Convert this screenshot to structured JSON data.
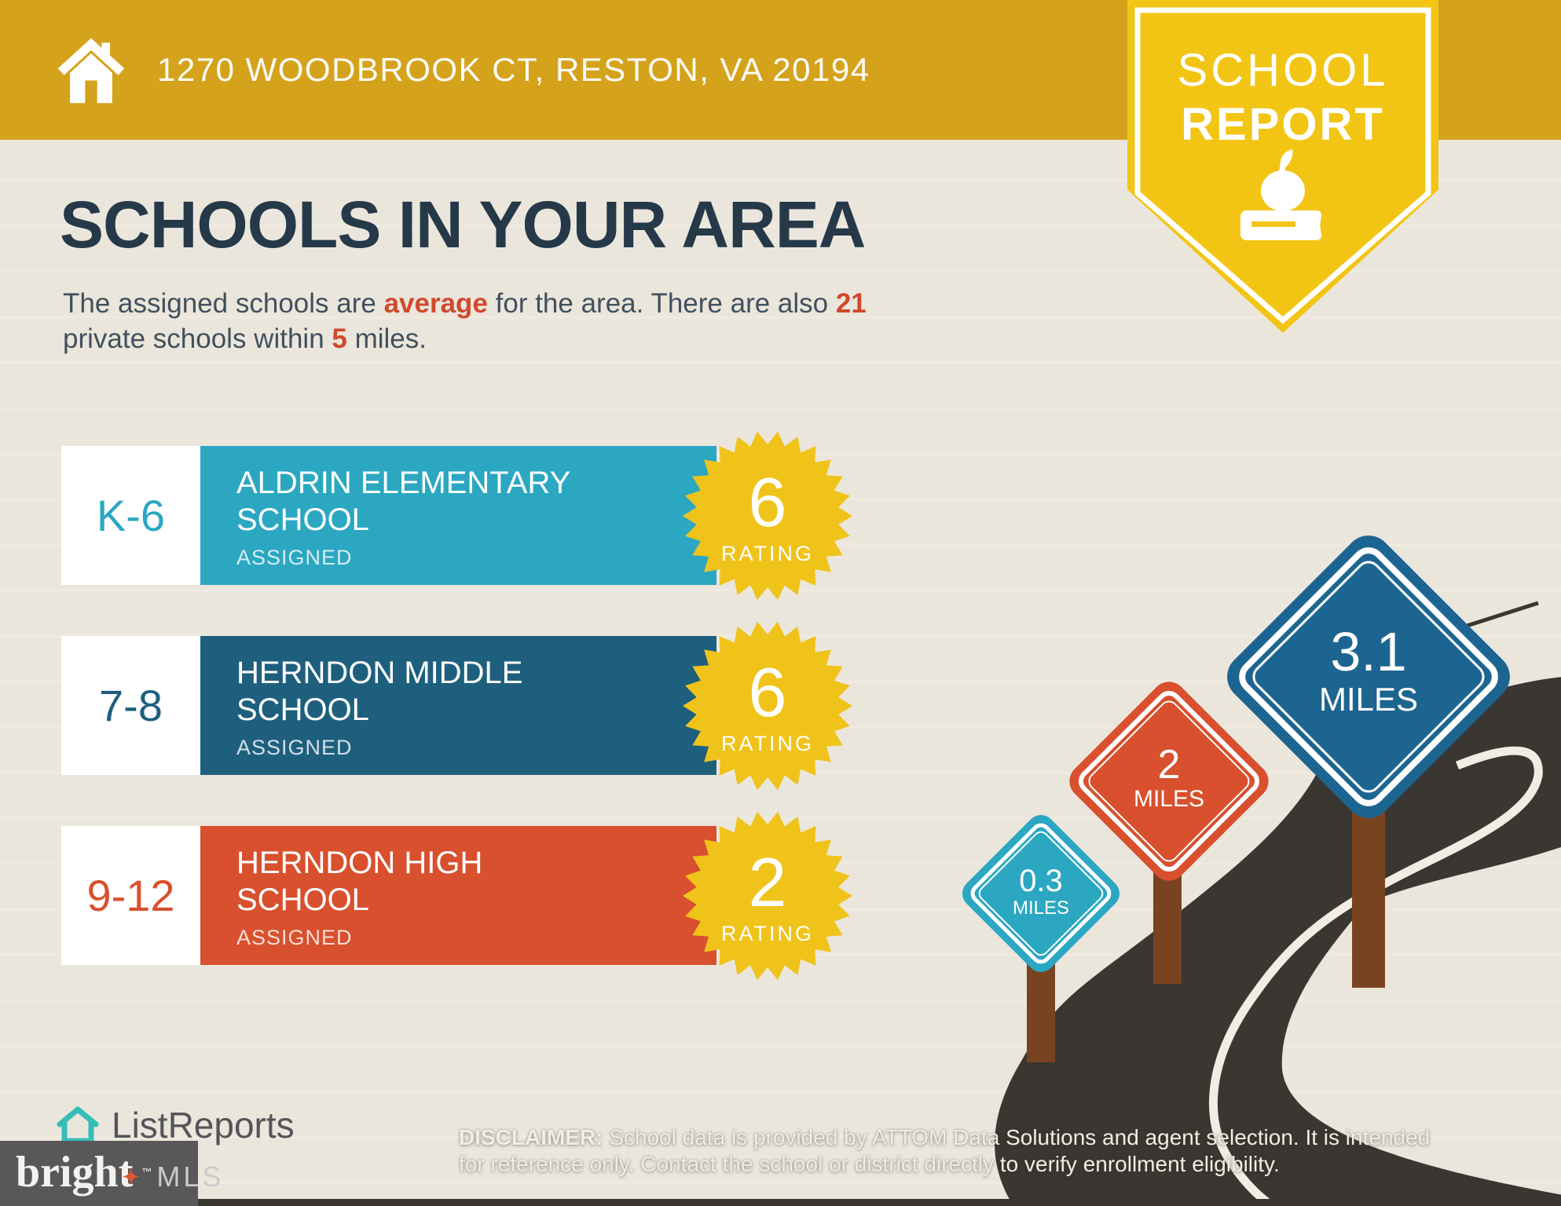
{
  "header": {
    "address": "1270 WOODBROOK CT, RESTON, VA 20194"
  },
  "banner": {
    "line1": "SCHOOL",
    "line2": "REPORT"
  },
  "intro": {
    "title": "SCHOOLS IN YOUR AREA",
    "line1_a": "The assigned schools are ",
    "line1_b": "average",
    "line1_c": " for the area. There are also ",
    "line1_d": "21",
    "line2_a": "private schools within ",
    "line2_b": "5",
    "line2_c": " miles."
  },
  "schools": [
    {
      "grades": "K-6",
      "name": "ALDRIN ELEMENTARY SCHOOL",
      "status": "ASSIGNED",
      "rating": "6",
      "color": "#2BA7C2"
    },
    {
      "grades": "7-8",
      "name": "HERNDON MIDDLE SCHOOL",
      "status": "ASSIGNED",
      "rating": "6",
      "color": "#1E5F7E"
    },
    {
      "grades": "9-12",
      "name": "HERNDON HIGH SCHOOL",
      "status": "ASSIGNED",
      "rating": "2",
      "color": "#D8502D"
    }
  ],
  "labels": {
    "rating": "RATING"
  },
  "signs": [
    {
      "distance": "0.3",
      "unit": "MILES",
      "color": "#2BA7C2"
    },
    {
      "distance": "2",
      "unit": "MILES",
      "color": "#D8502D"
    },
    {
      "distance": "3.1",
      "unit": "MILES",
      "color": "#1D6591"
    }
  ],
  "footer": {
    "brand": "ListReports",
    "mls_name": "bright",
    "mls_tm": "™",
    "mls_suffix": "MLS",
    "disclaimer_label": "DISCLAIMER:",
    "disclaimer_line1": " School data is provided by ATTOM Data Solutions and agent selection. It is intended",
    "disclaimer_line2": "for reference only. Contact the school or district directly to verify enrollment eligibility."
  },
  "colors": {
    "header_gold": "#D5A21B",
    "banner_yellow": "#F2C515",
    "background": "#EAE5DB",
    "title_navy": "#263949",
    "accent_red": "#D0492B",
    "badge_yellow": "#F0C31A",
    "road": "#3A3631",
    "post_brown": "#7A4320",
    "mls_box": "#58585A",
    "listreports_teal": "#35BEB7"
  }
}
